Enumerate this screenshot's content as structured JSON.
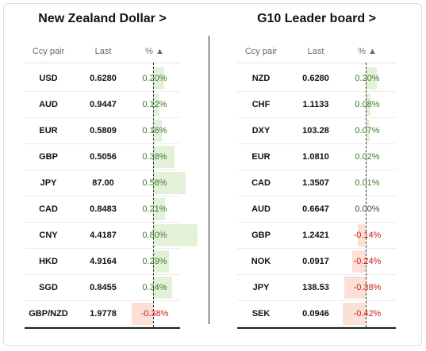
{
  "colors": {
    "positive_text": "#3f7a2e",
    "negative_text": "#d11a1a",
    "positive_bar": "#e3f1d8",
    "negative_bar": "#fbe0d6"
  },
  "left": {
    "title": "New Zealand Dollar >",
    "headers": {
      "pair": "Ccy pair",
      "last": "Last",
      "pct": "% ▲"
    },
    "rows": [
      {
        "pair": "USD",
        "last": "0.6280",
        "pct": "0.20%",
        "value": 0.2
      },
      {
        "pair": "AUD",
        "last": "0.9447",
        "pct": "0.12%",
        "value": 0.12
      },
      {
        "pair": "EUR",
        "last": "0.5809",
        "pct": "0.16%",
        "value": 0.16
      },
      {
        "pair": "GBP",
        "last": "0.5056",
        "pct": "0.38%",
        "value": 0.38
      },
      {
        "pair": "JPY",
        "last": "87.00",
        "pct": "0.58%",
        "value": 0.58
      },
      {
        "pair": "CAD",
        "last": "0.8483",
        "pct": "0.21%",
        "value": 0.21
      },
      {
        "pair": "CNY",
        "last": "4.4187",
        "pct": "0.80%",
        "value": 0.8
      },
      {
        "pair": "HKD",
        "last": "4.9164",
        "pct": "0.29%",
        "value": 0.29
      },
      {
        "pair": "SGD",
        "last": "0.8455",
        "pct": "0.34%",
        "value": 0.34
      },
      {
        "pair": "GBP/NZD",
        "last": "1.9778",
        "pct": "-0.38%",
        "value": -0.38
      }
    ]
  },
  "right": {
    "title": "G10 Leader board >",
    "headers": {
      "pair": "Ccy pair",
      "last": "Last",
      "pct": "% ▲"
    },
    "rows": [
      {
        "pair": "NZD",
        "last": "0.6280",
        "pct": "0.20%",
        "value": 0.2
      },
      {
        "pair": "CHF",
        "last": "1.1133",
        "pct": "0.08%",
        "value": 0.08
      },
      {
        "pair": "DXY",
        "last": "103.28",
        "pct": "0.07%",
        "value": 0.07
      },
      {
        "pair": "EUR",
        "last": "1.0810",
        "pct": "0.02%",
        "value": 0.02
      },
      {
        "pair": "CAD",
        "last": "1.3507",
        "pct": "0.01%",
        "value": 0.01
      },
      {
        "pair": "AUD",
        "last": "0.6647",
        "pct": "0.00%",
        "value": 0.0
      },
      {
        "pair": "GBP",
        "last": "1.2421",
        "pct": "-0.14%",
        "value": -0.14
      },
      {
        "pair": "NOK",
        "last": "0.0917",
        "pct": "-0.24%",
        "value": -0.24
      },
      {
        "pair": "JPY",
        "last": "138.53",
        "pct": "-0.38%",
        "value": -0.38
      },
      {
        "pair": "SEK",
        "last": "0.0946",
        "pct": "-0.42%",
        "value": -0.42
      }
    ]
  }
}
